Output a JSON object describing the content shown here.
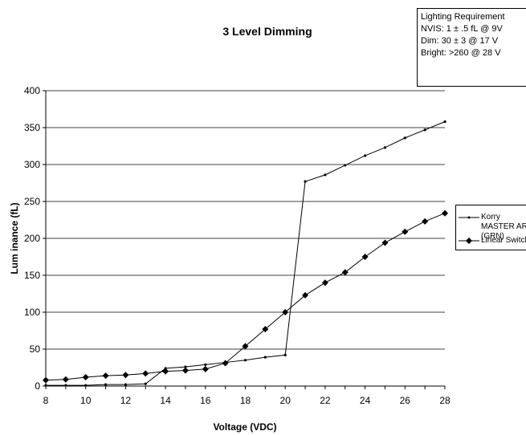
{
  "chart_data": {
    "type": "line",
    "title": "3 Level Dimming",
    "xlabel": "Voltage (VDC)",
    "ylabel": "Lum inance (fL)",
    "xlim": [
      8,
      28
    ],
    "ylim": [
      0,
      400
    ],
    "x_ticks": [
      8,
      10,
      12,
      14,
      16,
      18,
      20,
      22,
      24,
      26,
      28
    ],
    "y_ticks": [
      0,
      50,
      100,
      150,
      200,
      250,
      300,
      350,
      400
    ],
    "x": [
      8,
      9,
      10,
      11,
      12,
      13,
      14,
      15,
      16,
      17,
      18,
      19,
      20,
      21,
      22,
      23,
      24,
      25,
      26,
      27,
      28
    ],
    "grid": "horizontal",
    "legend_position": "right",
    "series": [
      {
        "name": "Korry MASTER ARM (GRN)",
        "marker": "small-dot",
        "values": [
          1,
          1,
          1,
          2,
          2,
          3,
          24,
          26,
          29,
          32,
          35,
          39,
          42,
          277,
          286,
          299,
          312,
          323,
          336,
          347,
          358
        ]
      },
      {
        "name": "Linear Switch",
        "marker": "diamond",
        "values": [
          8,
          9,
          12,
          14,
          15,
          17,
          20,
          21,
          23,
          31,
          54,
          77,
          100,
          123,
          140,
          154,
          175,
          194,
          209,
          223,
          234
        ]
      }
    ],
    "annotation": {
      "lines": [
        "Lighting Requirement",
        "NVIS: 1 ± .5  fL  @ 9V",
        "Dim:  30 ± 3 @ 17 V",
        "Bright: >260 @ 28 V"
      ]
    }
  },
  "colors": {
    "line": "#000000",
    "grid": "#000000",
    "background": "#ffffff"
  }
}
